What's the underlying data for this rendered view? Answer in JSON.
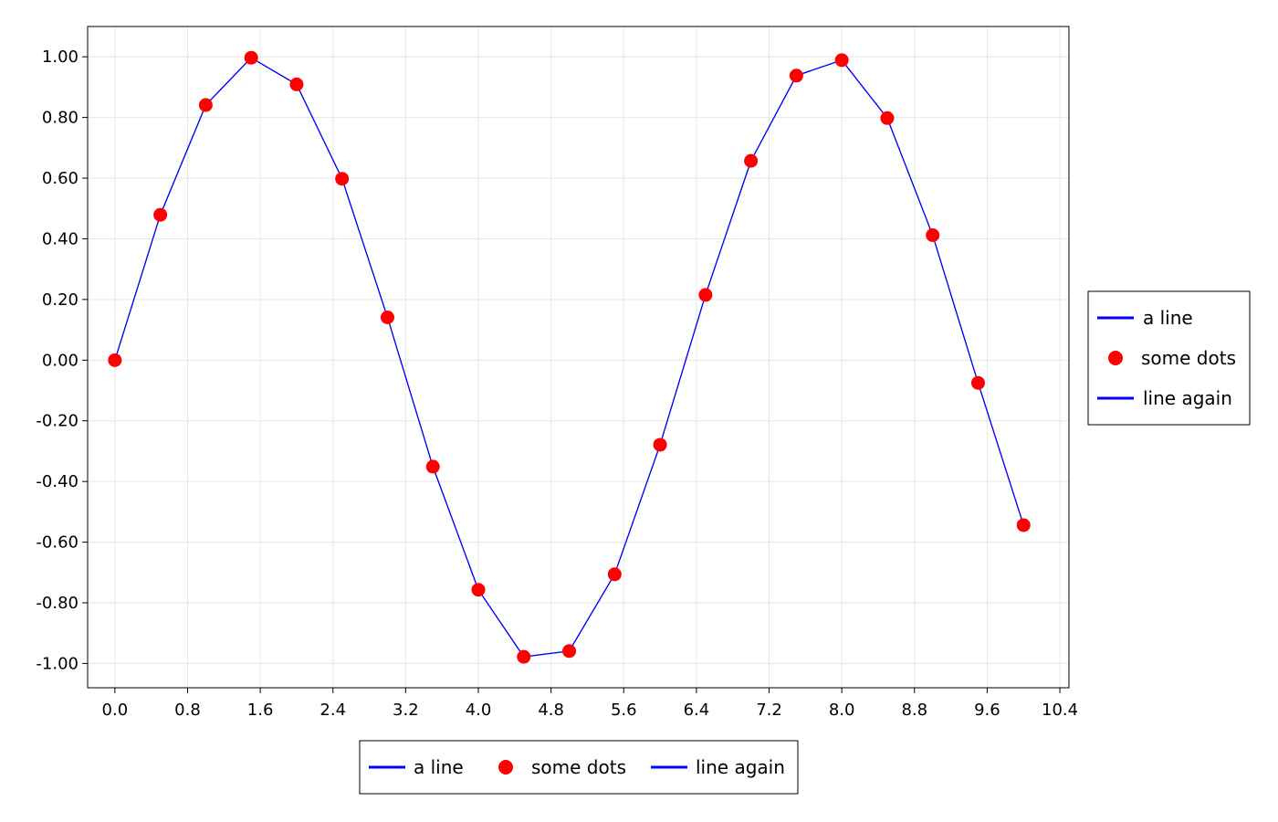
{
  "chart_data": {
    "type": "line",
    "title": "",
    "xlabel": "",
    "ylabel": "",
    "xlim": [
      -0.3,
      10.5
    ],
    "ylim": [
      -1.08,
      1.1
    ],
    "grid": true,
    "x_ticks": [
      "0.0",
      "0.8",
      "1.6",
      "2.4",
      "3.2",
      "4.0",
      "4.8",
      "5.6",
      "6.4",
      "7.2",
      "8.0",
      "8.8",
      "9.6",
      "10.4"
    ],
    "y_ticks": [
      "1.00",
      "0.80",
      "0.60",
      "0.40",
      "0.20",
      "0.00",
      "-0.20",
      "-0.40",
      "-0.60",
      "-0.80",
      "-1.00"
    ],
    "x": [
      0.0,
      0.5,
      1.0,
      1.5,
      2.0,
      2.5,
      3.0,
      3.5,
      4.0,
      4.5,
      5.0,
      5.5,
      6.0,
      6.5,
      7.0,
      7.5,
      8.0,
      8.5,
      9.0,
      9.5,
      10.0
    ],
    "series": [
      {
        "name": "a line",
        "style": "line",
        "color": "#0000ff",
        "values": [
          0.0,
          0.479,
          0.841,
          0.997,
          0.909,
          0.598,
          0.141,
          -0.351,
          -0.757,
          -0.978,
          -0.959,
          -0.706,
          -0.279,
          0.215,
          0.657,
          0.938,
          0.989,
          0.798,
          0.412,
          -0.075,
          -0.544
        ]
      },
      {
        "name": "some dots",
        "style": "scatter",
        "color": "#ff0000",
        "values": [
          0.0,
          0.479,
          0.841,
          0.997,
          0.909,
          0.598,
          0.141,
          -0.351,
          -0.757,
          -0.978,
          -0.959,
          -0.706,
          -0.279,
          0.215,
          0.657,
          0.938,
          0.989,
          0.798,
          0.412,
          -0.075,
          -0.544
        ]
      },
      {
        "name": "line again",
        "style": "line",
        "color": "#0000ff",
        "values": [
          0.0,
          0.479,
          0.841,
          0.997,
          0.909,
          0.598,
          0.141,
          -0.351,
          -0.757,
          -0.978,
          -0.959,
          -0.706,
          -0.279,
          0.215,
          0.657,
          0.938,
          0.989,
          0.798,
          0.412,
          -0.075,
          -0.544
        ]
      }
    ],
    "legends": [
      {
        "placement": "right",
        "orientation": "vertical"
      },
      {
        "placement": "bottom",
        "orientation": "horizontal"
      }
    ]
  }
}
